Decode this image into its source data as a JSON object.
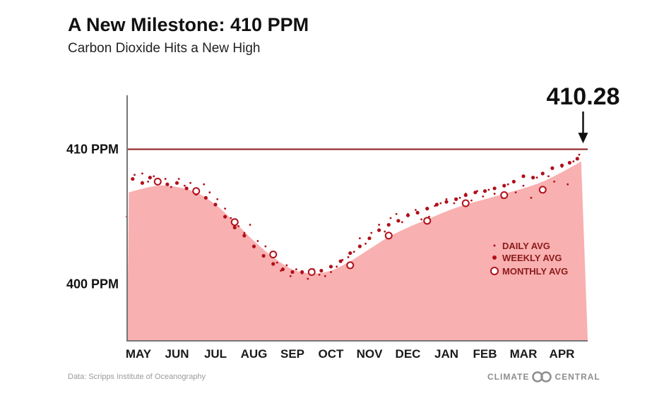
{
  "title": "A New Milestone: 410 PPM",
  "subtitle": "Carbon Dioxide Hits a New High",
  "source": "Data: Scripps Institute of Oceanography",
  "brand": {
    "left": "CLIMATE",
    "right": "CENTRAL"
  },
  "colors": {
    "area": "#f9b0b0",
    "dots": "#b0101a",
    "reference_line": "#8b1a1a",
    "text": "#111111"
  },
  "chart_data": {
    "type": "area",
    "title": "A New Milestone: 410 PPM",
    "subtitle": "Carbon Dioxide Hits a New High",
    "xlabel": "",
    "ylabel": "",
    "categories": [
      "MAY",
      "JUN",
      "JUL",
      "AUG",
      "SEP",
      "OCT",
      "NOV",
      "DEC",
      "JAN",
      "FEB",
      "MAR",
      "APR"
    ],
    "yticks": [
      {
        "value": 400,
        "label": "400 PPM"
      },
      {
        "value": 410,
        "label": "410 PPM"
      }
    ],
    "ylim": [
      395.8,
      414
    ],
    "reference_line": {
      "value": 410
    },
    "callout": {
      "label": "410.28",
      "value": 410.28,
      "x": 11.55
    },
    "smooth_curve": {
      "x": [
        -0.25,
        0,
        0.5,
        1,
        1.5,
        2,
        2.5,
        3,
        3.5,
        4,
        4.5,
        5,
        5.5,
        6,
        6.5,
        7,
        7.5,
        8,
        8.5,
        9,
        9.5,
        10,
        10.5,
        11,
        11.5
      ],
      "y": [
        406.8,
        407.0,
        407.3,
        407.2,
        406.8,
        405.9,
        404.6,
        403.2,
        402.0,
        401.1,
        400.8,
        401.0,
        401.7,
        402.6,
        403.5,
        404.2,
        404.8,
        405.4,
        405.9,
        406.3,
        406.7,
        407.1,
        407.6,
        408.3,
        409.1
      ]
    },
    "series": [
      {
        "name": "DAILY AVG",
        "marker": "small-dot",
        "points": [
          [
            -0.3,
            405.0
          ],
          [
            -0.1,
            408.1
          ],
          [
            0.1,
            408.2
          ],
          [
            0.25,
            407.6
          ],
          [
            0.4,
            408.0
          ],
          [
            0.55,
            407.5
          ],
          [
            0.7,
            407.8
          ],
          [
            0.85,
            407.2
          ],
          [
            1.05,
            407.8
          ],
          [
            1.2,
            407.3
          ],
          [
            1.35,
            407.5
          ],
          [
            1.5,
            406.9
          ],
          [
            1.7,
            407.4
          ],
          [
            1.85,
            406.8
          ],
          [
            2.05,
            406.3
          ],
          [
            2.25,
            405.6
          ],
          [
            2.4,
            404.9
          ],
          [
            2.6,
            404.3
          ],
          [
            2.75,
            403.8
          ],
          [
            2.9,
            404.4
          ],
          [
            3.1,
            403.2
          ],
          [
            3.3,
            402.8
          ],
          [
            3.45,
            402.1
          ],
          [
            3.6,
            401.6
          ],
          [
            3.7,
            401.0
          ],
          [
            3.85,
            401.4
          ],
          [
            3.95,
            400.6
          ],
          [
            4.1,
            401.1
          ],
          [
            4.25,
            400.8
          ],
          [
            4.4,
            400.4
          ],
          [
            4.55,
            401.1
          ],
          [
            4.7,
            400.7
          ],
          [
            4.85,
            400.6
          ],
          [
            5.0,
            400.9
          ],
          [
            5.15,
            401.3
          ],
          [
            5.3,
            401.8
          ],
          [
            5.45,
            402.0
          ],
          [
            5.6,
            402.4
          ],
          [
            5.75,
            403.4
          ],
          [
            5.9,
            403.0
          ],
          [
            6.05,
            403.8
          ],
          [
            6.25,
            404.4
          ],
          [
            6.4,
            403.9
          ],
          [
            6.55,
            404.9
          ],
          [
            6.7,
            405.2
          ],
          [
            6.85,
            404.6
          ],
          [
            7.0,
            405.2
          ],
          [
            7.2,
            405.5
          ],
          [
            7.35,
            404.8
          ],
          [
            7.55,
            405.0
          ],
          [
            7.7,
            405.8
          ],
          [
            7.85,
            406.0
          ],
          [
            8.0,
            406.3
          ],
          [
            8.2,
            406.0
          ],
          [
            8.35,
            406.4
          ],
          [
            8.5,
            406.7
          ],
          [
            8.65,
            406.2
          ],
          [
            8.8,
            406.9
          ],
          [
            8.95,
            406.5
          ],
          [
            9.1,
            407.0
          ],
          [
            9.25,
            406.7
          ],
          [
            9.45,
            406.4
          ],
          [
            9.6,
            407.4
          ],
          [
            9.8,
            406.8
          ],
          [
            10.0,
            407.3
          ],
          [
            10.2,
            406.4
          ],
          [
            10.35,
            407.9
          ],
          [
            10.5,
            407.1
          ],
          [
            10.65,
            408.0
          ],
          [
            10.8,
            407.6
          ],
          [
            11.0,
            408.7
          ],
          [
            11.15,
            407.4
          ],
          [
            11.3,
            409.1
          ],
          [
            11.45,
            409.6
          ]
        ]
      },
      {
        "name": "WEEKLY AVG",
        "marker": "dot",
        "points": [
          [
            -0.15,
            407.8
          ],
          [
            0.1,
            407.5
          ],
          [
            0.3,
            407.9
          ],
          [
            0.5,
            407.6
          ],
          [
            0.75,
            407.4
          ],
          [
            1.0,
            407.5
          ],
          [
            1.25,
            407.1
          ],
          [
            1.5,
            406.7
          ],
          [
            1.75,
            406.4
          ],
          [
            2.0,
            405.9
          ],
          [
            2.25,
            405.0
          ],
          [
            2.5,
            404.2
          ],
          [
            2.75,
            403.6
          ],
          [
            3.0,
            402.8
          ],
          [
            3.25,
            402.1
          ],
          [
            3.5,
            401.5
          ],
          [
            3.75,
            401.1
          ],
          [
            4.0,
            400.9
          ],
          [
            4.25,
            400.9
          ],
          [
            4.5,
            400.9
          ],
          [
            4.75,
            401.0
          ],
          [
            5.0,
            401.3
          ],
          [
            5.25,
            401.7
          ],
          [
            5.5,
            402.3
          ],
          [
            5.75,
            402.8
          ],
          [
            6.0,
            403.4
          ],
          [
            6.25,
            404.0
          ],
          [
            6.5,
            404.4
          ],
          [
            6.75,
            404.7
          ],
          [
            7.0,
            405.1
          ],
          [
            7.25,
            405.3
          ],
          [
            7.5,
            405.6
          ],
          [
            7.75,
            405.9
          ],
          [
            8.0,
            406.1
          ],
          [
            8.25,
            406.3
          ],
          [
            8.5,
            406.6
          ],
          [
            8.75,
            406.8
          ],
          [
            9.0,
            406.9
          ],
          [
            9.25,
            407.1
          ],
          [
            9.5,
            407.3
          ],
          [
            9.75,
            407.6
          ],
          [
            10.0,
            408.0
          ],
          [
            10.25,
            407.9
          ],
          [
            10.5,
            408.2
          ],
          [
            10.75,
            408.6
          ],
          [
            11.0,
            408.8
          ],
          [
            11.2,
            409.0
          ],
          [
            11.4,
            409.3
          ]
        ]
      },
      {
        "name": "MONTHLY AVG",
        "marker": "ring",
        "points": [
          [
            0.5,
            407.6
          ],
          [
            1.5,
            406.9
          ],
          [
            2.5,
            404.6
          ],
          [
            3.5,
            402.2
          ],
          [
            4.5,
            400.9
          ],
          [
            5.5,
            401.4
          ],
          [
            6.5,
            403.6
          ],
          [
            7.5,
            404.7
          ],
          [
            8.5,
            406.0
          ],
          [
            9.5,
            406.6
          ],
          [
            10.5,
            407.0
          ]
        ]
      }
    ],
    "legend": {
      "position": "right-center",
      "entries": [
        "DAILY AVG",
        "WEEKLY AVG",
        "MONTHLY AVG"
      ]
    },
    "grid": false
  }
}
